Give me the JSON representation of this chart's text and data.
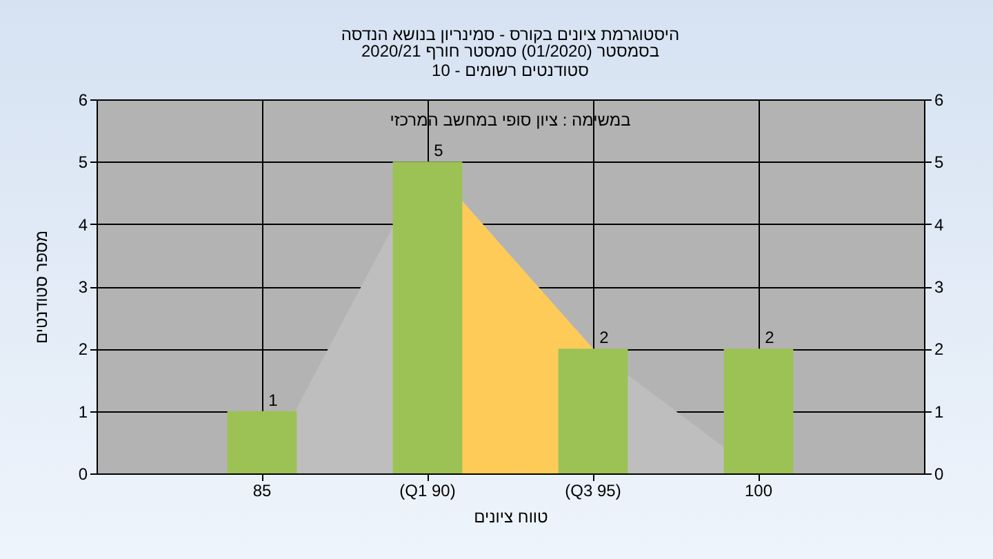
{
  "chart_data": {
    "type": "bar",
    "title": "היסטוגרמת ציונים בקורס - סמינריון בנושא הנדסה",
    "subtitle": [
      "בסמסטר  (01/2020)  סמסטר חורף 2020/21",
      "סטודנטים רשומים - 10"
    ],
    "xlabel": "טווח ציונים",
    "ylabel": "מספר סטודנטים",
    "annotations": [
      "במשימה : ציון סופי במחשב המרכזי"
    ],
    "categories": [
      "85",
      "(Q1 90)",
      "(Q3 95)",
      "100"
    ],
    "series": [
      {
        "type": "area",
        "color": "#bebebe",
        "values": [
          0,
          5,
          2,
          0
        ]
      },
      {
        "type": "area",
        "color": "#fecb58",
        "values": [
          null,
          5,
          2,
          null
        ]
      },
      {
        "color": "#9cc255",
        "values": [
          1,
          5,
          2,
          2
        ],
        "data_labels": true
      }
    ],
    "ylim": [
      0,
      6
    ],
    "yticks": [
      0,
      1,
      2,
      3,
      4,
      5,
      6
    ],
    "y2lim": [
      0,
      6
    ],
    "y2ticks": [
      0,
      1,
      2,
      3,
      4,
      5,
      6
    ],
    "grid": true
  }
}
